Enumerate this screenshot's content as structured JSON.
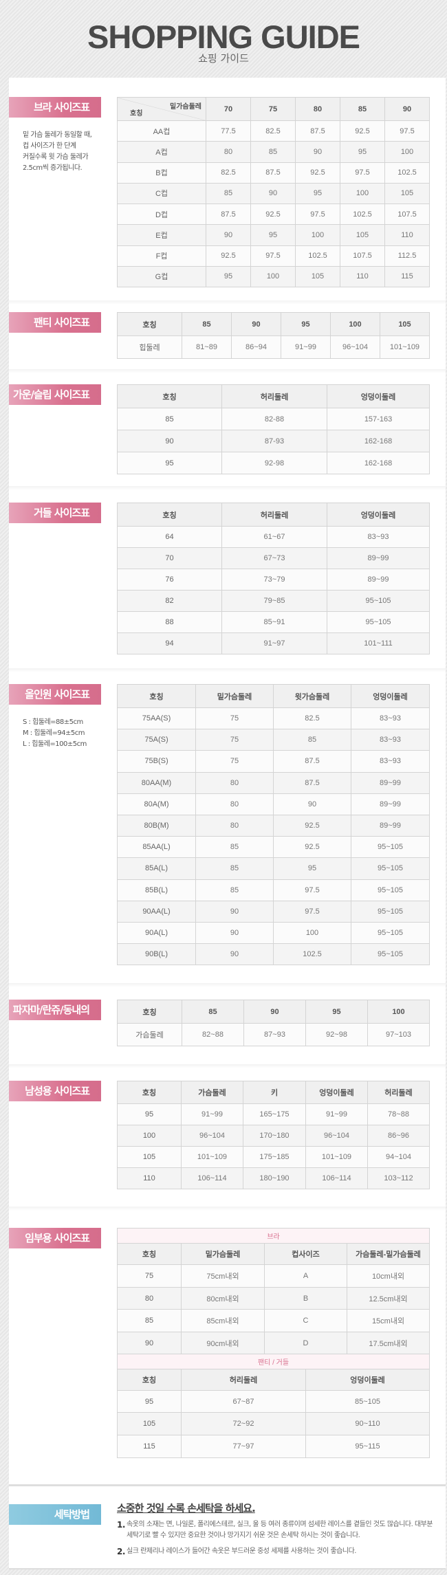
{
  "header": {
    "title": "SHOPPING GUIDE",
    "subtitle": "쇼핑 가이드"
  },
  "colors": {
    "label_pink": "#d9718f",
    "label_blue": "#72b9d6",
    "band_text": "#d9708f"
  },
  "sections": [
    {
      "id": "bra",
      "label": "브라 사이즈표",
      "note": [
        "밑 가슴 둘레가 동일할 때,",
        "컵 사이즈가 한 단계",
        "커질수록 윗 가슴 둘레가",
        "2.5cm씩 증가됩니다."
      ],
      "tables": [
        {
          "diag": {
            "top": "밑가슴둘레",
            "bottom": "호칭"
          },
          "headers": [
            "70",
            "75",
            "80",
            "85",
            "90"
          ],
          "rows": [
            [
              "AA컵",
              "77.5",
              "82.5",
              "87.5",
              "92.5",
              "97.5"
            ],
            [
              "A컵",
              "80",
              "85",
              "90",
              "95",
              "100"
            ],
            [
              "B컵",
              "82.5",
              "87.5",
              "92.5",
              "97.5",
              "102.5"
            ],
            [
              "C컵",
              "85",
              "90",
              "95",
              "100",
              "105"
            ],
            [
              "D컵",
              "87.5",
              "92.5",
              "97.5",
              "102.5",
              "107.5"
            ],
            [
              "E컵",
              "90",
              "95",
              "100",
              "105",
              "110"
            ],
            [
              "F컵",
              "92.5",
              "97.5",
              "102.5",
              "107.5",
              "112.5"
            ],
            [
              "G컵",
              "95",
              "100",
              "105",
              "110",
              "115"
            ]
          ]
        }
      ]
    },
    {
      "id": "panty",
      "label": "팬티 사이즈표",
      "tables": [
        {
          "headers": [
            "호칭",
            "85",
            "90",
            "95",
            "100",
            "105"
          ],
          "rows": [
            [
              "힙둘레",
              "81~89",
              "86~94",
              "91~99",
              "96~104",
              "101~109"
            ]
          ]
        }
      ]
    },
    {
      "id": "gown",
      "label": "가운/슬립 사이즈표",
      "tables": [
        {
          "headers": [
            "호칭",
            "허리둘레",
            "엉덩이둘레"
          ],
          "rows": [
            [
              "85",
              "82-88",
              "157-163"
            ],
            [
              "90",
              "87-93",
              "162-168"
            ],
            [
              "95",
              "92-98",
              "162-168"
            ]
          ]
        }
      ]
    },
    {
      "id": "girdle",
      "label": "거들 사이즈표",
      "tables": [
        {
          "headers": [
            "호칭",
            "허리둘레",
            "엉덩이둘레"
          ],
          "rows": [
            [
              "64",
              "61~67",
              "83~93"
            ],
            [
              "70",
              "67~73",
              "89~99"
            ],
            [
              "76",
              "73~79",
              "89~99"
            ],
            [
              "82",
              "79~85",
              "95~105"
            ],
            [
              "88",
              "85~91",
              "95~105"
            ],
            [
              "94",
              "91~97",
              "101~111"
            ]
          ]
        }
      ]
    },
    {
      "id": "allinone",
      "label": "올인원 사이즈표",
      "note": [
        "S : 힙둘레=88±5cm",
        "M : 힙둘레=94±5cm",
        "L : 힙둘레=100±5cm"
      ],
      "tables": [
        {
          "headers": [
            "호칭",
            "밑가슴둘레",
            "윗가슴둘레",
            "엉덩이둘레"
          ],
          "rows": [
            [
              "75AA(S)",
              "75",
              "82.5",
              "83~93"
            ],
            [
              "75A(S)",
              "75",
              "85",
              "83~93"
            ],
            [
              "75B(S)",
              "75",
              "87.5",
              "83~93"
            ],
            [
              "80AA(M)",
              "80",
              "87.5",
              "89~99"
            ],
            [
              "80A(M)",
              "80",
              "90",
              "89~99"
            ],
            [
              "80B(M)",
              "80",
              "92.5",
              "89~99"
            ],
            [
              "85AA(L)",
              "85",
              "92.5",
              "95~105"
            ],
            [
              "85A(L)",
              "85",
              "95",
              "95~105"
            ],
            [
              "85B(L)",
              "85",
              "97.5",
              "95~105"
            ],
            [
              "90AA(L)",
              "90",
              "97.5",
              "95~105"
            ],
            [
              "90A(L)",
              "90",
              "100",
              "95~105"
            ],
            [
              "90B(L)",
              "90",
              "102.5",
              "95~105"
            ]
          ]
        }
      ]
    },
    {
      "id": "pajama",
      "label": "파자마/란쥬/동내의",
      "tables": [
        {
          "headers": [
            "호칭",
            "85",
            "90",
            "95",
            "100"
          ],
          "rows": [
            [
              "가슴둘레",
              "82~88",
              "87~93",
              "92~98",
              "97~103"
            ]
          ]
        }
      ]
    },
    {
      "id": "men",
      "label": "남성용 사이즈표",
      "tables": [
        {
          "headers": [
            "호칭",
            "가슴둘레",
            "키",
            "엉덩이둘레",
            "허리둘레"
          ],
          "rows": [
            [
              "95",
              "91~99",
              "165~175",
              "91~99",
              "78~88"
            ],
            [
              "100",
              "96~104",
              "170~180",
              "96~104",
              "86~96"
            ],
            [
              "105",
              "101~109",
              "175~185",
              "101~109",
              "94~104"
            ],
            [
              "110",
              "106~114",
              "180~190",
              "106~114",
              "103~112"
            ]
          ]
        }
      ]
    },
    {
      "id": "maternity",
      "label": "임부용 사이즈표",
      "tables": [
        {
          "band": "브라",
          "headers": [
            "호칭",
            "밑가슴둘레",
            "컵사이즈",
            "가슴둘레-밑가슴둘레"
          ],
          "rows": [
            [
              "75",
              "75cm내외",
              "A",
              "10cm내외"
            ],
            [
              "80",
              "80cm내외",
              "B",
              "12.5cm내외"
            ],
            [
              "85",
              "85cm내외",
              "C",
              "15cm내외"
            ],
            [
              "90",
              "90cm내외",
              "D",
              "17.5cm내외"
            ]
          ]
        },
        {
          "band": "팬티 / 거들",
          "headers": [
            "호칭",
            "허리둘레",
            "엉덩이둘레"
          ],
          "rows": [
            [
              "95",
              "67~87",
              "85~105"
            ],
            [
              "105",
              "72~92",
              "90~110"
            ],
            [
              "115",
              "77~97",
              "95~115"
            ]
          ]
        }
      ]
    }
  ],
  "washing": {
    "label": "세탁방법",
    "heading": "소중한 것일 수록 손세탁을 하세요.",
    "items": [
      {
        "num": "1.",
        "text": "속옷의 소재는 면, 나일론, 폴리에스테르, 실크, 울 등 여러 종류이며 섬세한 레이스를 곁들인 것도 많습니다. 대부분 세탁기로 빨 수 있지만 중요한 것이나 망가지기 쉬운 것은 손세탁 하시는 것이 좋습니다."
      },
      {
        "num": "2.",
        "text": "실크 란제리나 레이스가 들어간 속옷은 부드러운 중성 세제를 사용하는 것이 좋습니다."
      }
    ]
  }
}
